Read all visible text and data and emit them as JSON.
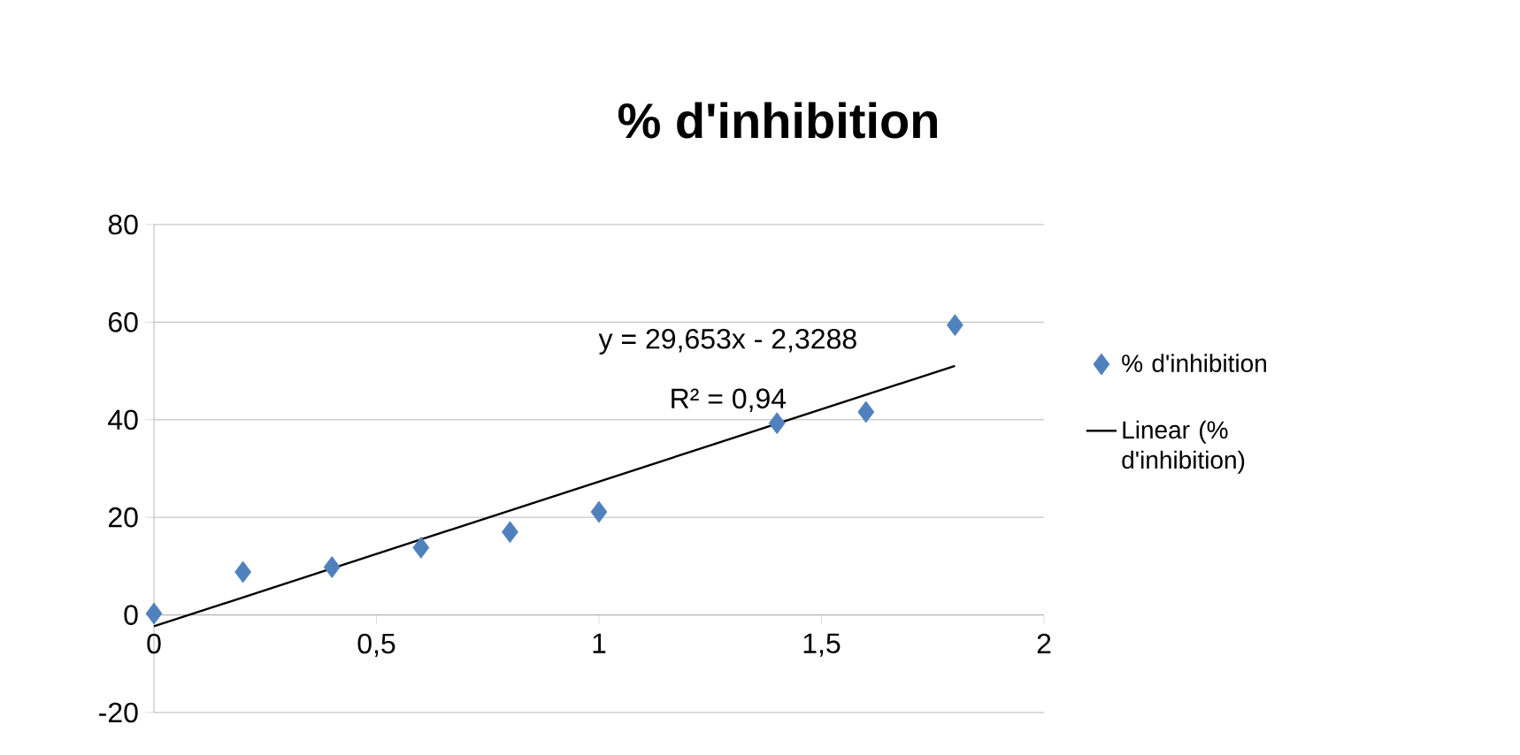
{
  "chart_data": {
    "type": "scatter",
    "title": "% d'inhibition",
    "x": [
      0,
      0.2,
      0.4,
      0.6,
      0.8,
      1.0,
      1.4,
      1.6,
      1.8
    ],
    "series": [
      {
        "name": "% d'inhibition",
        "color": "#4f81bd",
        "values": [
          0.3,
          8.8,
          9.8,
          13.8,
          17,
          21.1,
          39.3,
          41.6,
          59.4
        ]
      },
      {
        "name": "Linear (% d'inhibition)",
        "type": "line",
        "color": "#000000",
        "marker": "none",
        "x": [
          0,
          1.8
        ],
        "values": [
          -2.33,
          51.05
        ]
      }
    ],
    "annotations": [
      "y = 29,653x - 2,3288",
      "R² = 0,94"
    ],
    "marker": "diamond",
    "grid": "y",
    "legend": "right",
    "xlim": [
      0,
      2
    ],
    "ylim": [
      -20,
      80
    ],
    "xticks": [
      0,
      {
        "value": 0.5,
        "label": "0,5"
      },
      1,
      {
        "value": 1.5,
        "label": "1,5"
      },
      2
    ],
    "yticks": [
      -20,
      0,
      20,
      40,
      60,
      80
    ]
  }
}
